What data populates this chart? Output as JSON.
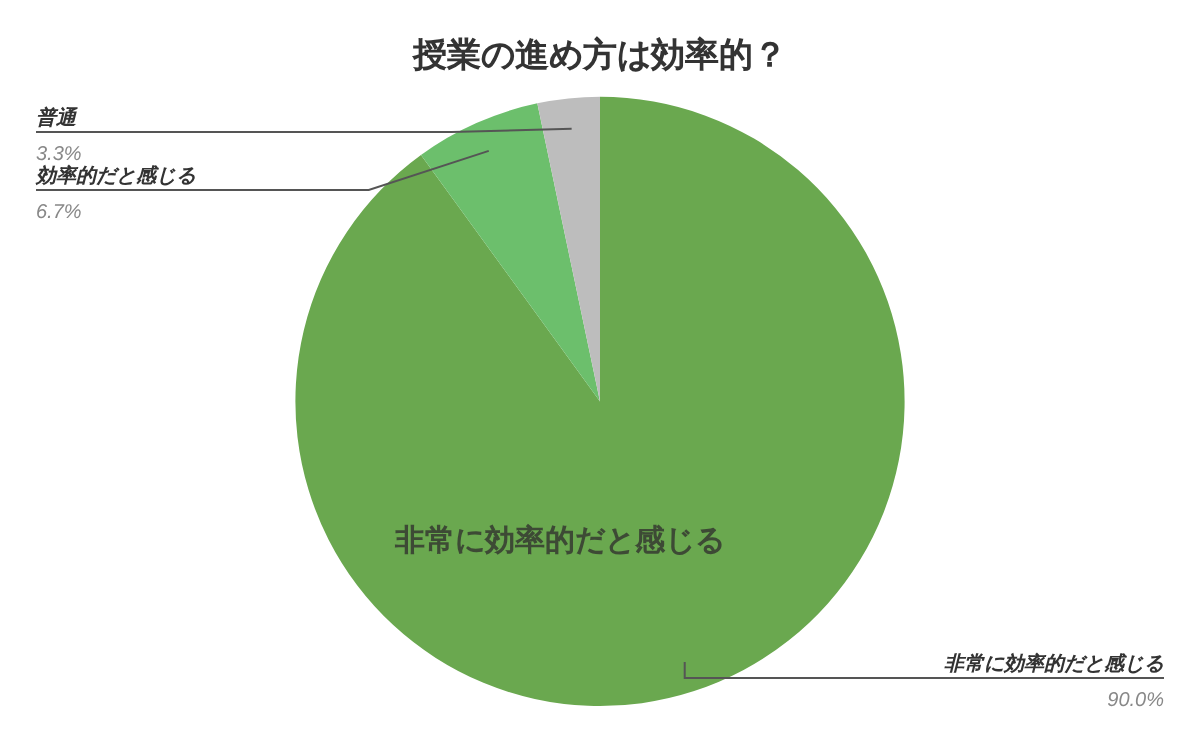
{
  "chart_data": {
    "type": "pie",
    "title": "授業の進め方は効率的？",
    "categories": [
      "非常に効率的だと感じる",
      "効率的だと感じる",
      "普通"
    ],
    "values": [
      90.0,
      6.7,
      3.3
    ],
    "colors": [
      "#6aa84f",
      "#6cbf6c",
      "#bdbdbd"
    ],
    "value_labels": [
      "90.0%",
      "6.7%",
      "3.3%"
    ],
    "legend": false
  }
}
